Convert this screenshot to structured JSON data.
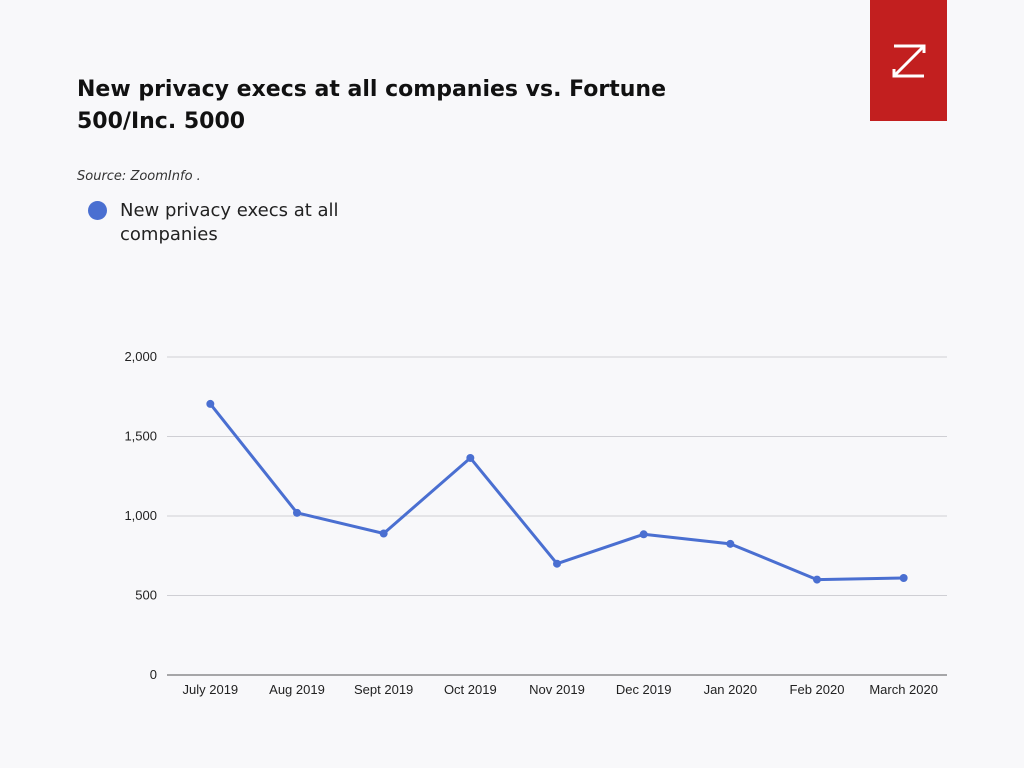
{
  "header": {
    "title": "New privacy execs at all companies vs. Fortune 500/Inc. 5000",
    "source": "Source: ZoomInfo ."
  },
  "logo": {
    "icon": "zoominfo-z-logo-icon",
    "color": "#c21f1f"
  },
  "chart_data": {
    "type": "line",
    "title": "New privacy execs at all companies vs. Fortune 500/Inc. 5000",
    "xlabel": "",
    "ylabel": "",
    "categories": [
      "July 2019",
      "Aug 2019",
      "Sept 2019",
      "Oct 2019",
      "Nov 2019",
      "Dec 2019",
      "Jan 2020",
      "Feb 2020",
      "March 2020"
    ],
    "series": [
      {
        "name": "New privacy execs at all companies",
        "color": "#4a6fd1",
        "values": [
          1705,
          1020,
          890,
          1365,
          700,
          885,
          825,
          600,
          610
        ]
      }
    ],
    "ylim": [
      0,
      2000
    ],
    "yticks": [
      0,
      500,
      1000,
      1500,
      2000
    ],
    "ytick_labels": [
      "0",
      "500",
      "1,000",
      "1,500",
      "2,000"
    ],
    "grid": true,
    "legend_position": "top-left"
  }
}
